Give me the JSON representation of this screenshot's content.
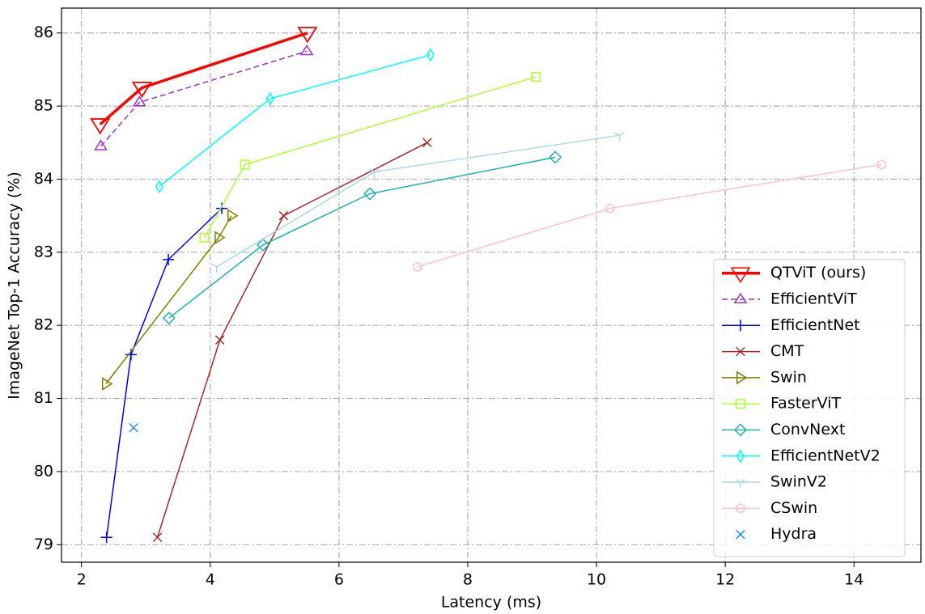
{
  "chart_data": {
    "type": "line",
    "x_label": "Latency (ms)",
    "y_label": "ImageNet Top-1 Accuracy (%)",
    "xlim": [
      1.69,
      15.04
    ],
    "ylim": [
      78.76,
      86.34
    ],
    "xticks": [
      2,
      4,
      6,
      8,
      10,
      12,
      14
    ],
    "yticks": [
      79,
      80,
      81,
      82,
      83,
      84,
      85,
      86
    ],
    "grid": true,
    "legend_position": "lower right",
    "series": [
      {
        "name": "QTViT (ours)",
        "color": "#ff0000",
        "marker": "triangle-down",
        "line_style": "solid",
        "line_width": 3.5,
        "x": [
          2.29,
          2.94,
          5.51
        ],
        "values": [
          84.75,
          85.25,
          86.0
        ]
      },
      {
        "name": "EfficientViT",
        "color": "#9932cc",
        "marker": "triangle-up",
        "line_style": "dashed",
        "line_width": 1.5,
        "x": [
          2.3,
          2.9,
          5.5
        ],
        "values": [
          84.45,
          85.05,
          85.75
        ]
      },
      {
        "name": "EfficientNet",
        "color": "#0000ff",
        "marker": "plus",
        "line_style": "solid",
        "line_width": 1.5,
        "x": [
          2.39,
          2.77,
          3.35,
          4.18
        ],
        "values": [
          79.1,
          81.6,
          82.9,
          83.6
        ]
      },
      {
        "name": "CMT",
        "color": "#a52a2a",
        "marker": "x",
        "line_style": "solid",
        "line_width": 1.5,
        "x": [
          3.18,
          4.15,
          5.14,
          7.37
        ],
        "values": [
          79.1,
          81.8,
          83.5,
          84.5
        ]
      },
      {
        "name": "Swin",
        "color": "#808000",
        "marker": "triangle-right",
        "line_style": "solid",
        "line_width": 1.5,
        "x": [
          2.38,
          4.13,
          4.33
        ],
        "values": [
          81.2,
          83.2,
          83.5
        ]
      },
      {
        "name": "FasterViT",
        "color": "#adff2f",
        "marker": "square",
        "line_style": "solid",
        "line_width": 1.5,
        "x": [
          3.91,
          4.54,
          9.06
        ],
        "values": [
          83.2,
          84.2,
          85.4
        ]
      },
      {
        "name": "ConvNext",
        "color": "#20b2aa",
        "marker": "diamond",
        "line_style": "solid",
        "line_width": 1.5,
        "x": [
          3.36,
          4.82,
          6.48,
          9.36
        ],
        "values": [
          82.1,
          83.1,
          83.8,
          84.3
        ]
      },
      {
        "name": "EfficientNetV2",
        "color": "#00ffff",
        "marker": "thin-diamond",
        "line_style": "solid",
        "line_width": 1.5,
        "x": [
          3.21,
          4.93,
          7.42
        ],
        "values": [
          83.9,
          85.1,
          85.7
        ]
      },
      {
        "name": "SwinV2",
        "color": "#add8e6",
        "marker": "tri-down",
        "line_style": "solid",
        "line_width": 1.5,
        "x": [
          4.1,
          6.55,
          10.36
        ],
        "values": [
          82.8,
          84.1,
          84.6
        ]
      },
      {
        "name": "CSwin",
        "color": "#ffc0cb",
        "marker": "hexagon",
        "line_style": "solid",
        "line_width": 1.5,
        "x": [
          7.22,
          10.21,
          14.43
        ],
        "values": [
          82.8,
          83.6,
          84.2
        ]
      },
      {
        "name": "Hydra",
        "color": "#1e90ff",
        "marker": "x",
        "line_style": "solid",
        "line_width": 1.5,
        "x": [
          2.81
        ],
        "values": [
          80.6
        ]
      }
    ]
  }
}
